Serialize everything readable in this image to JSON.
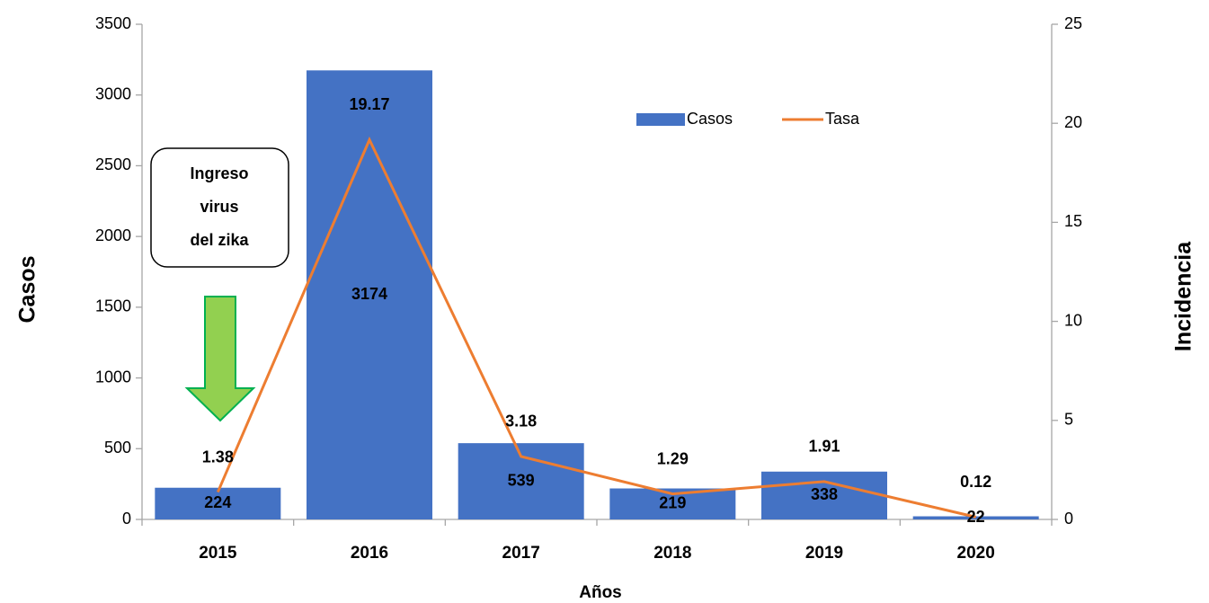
{
  "chart_data": {
    "type": "bar",
    "x_label": "Años",
    "y_label": "Casos",
    "y2_label": "Incidencia",
    "annotation": [
      "Ingreso",
      "virus",
      "del zika"
    ],
    "categories": [
      "2015",
      "2016",
      "2017",
      "2018",
      "2019",
      "2020"
    ],
    "series": [
      {
        "name": "Casos",
        "type": "bar",
        "color": "#4472c4",
        "values": [
          224,
          3174,
          539,
          219,
          338,
          22
        ]
      },
      {
        "name": "Tasa",
        "type": "line",
        "axis": "y2",
        "color": "#ed7d31",
        "values": [
          1.38,
          19.17,
          3.18,
          1.29,
          1.91,
          0.12
        ]
      }
    ],
    "ylim": [
      0,
      3500
    ],
    "yticks": [
      0,
      500,
      1000,
      1500,
      2000,
      2500,
      3000,
      3500
    ],
    "y2lim": [
      0,
      25
    ],
    "y2ticks": [
      0,
      5,
      10,
      15,
      20,
      25
    ],
    "grid": false,
    "legend": "top"
  }
}
